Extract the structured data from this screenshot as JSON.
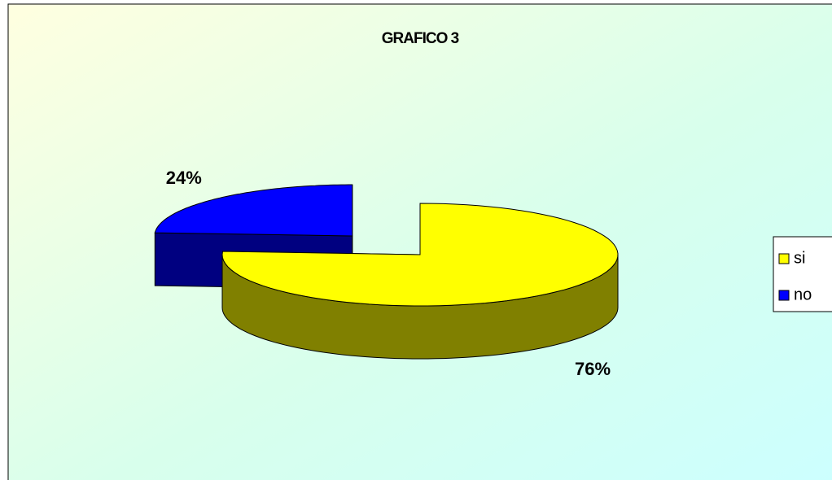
{
  "chart_data": {
    "type": "pie",
    "title": "GRAFICO 3",
    "categories": [
      "si",
      "no"
    ],
    "values": [
      76,
      24
    ],
    "value_labels": [
      "76%",
      "24%"
    ],
    "colors": [
      "#ffff00",
      "#0000ff"
    ],
    "legend": "right",
    "three_d": true
  }
}
